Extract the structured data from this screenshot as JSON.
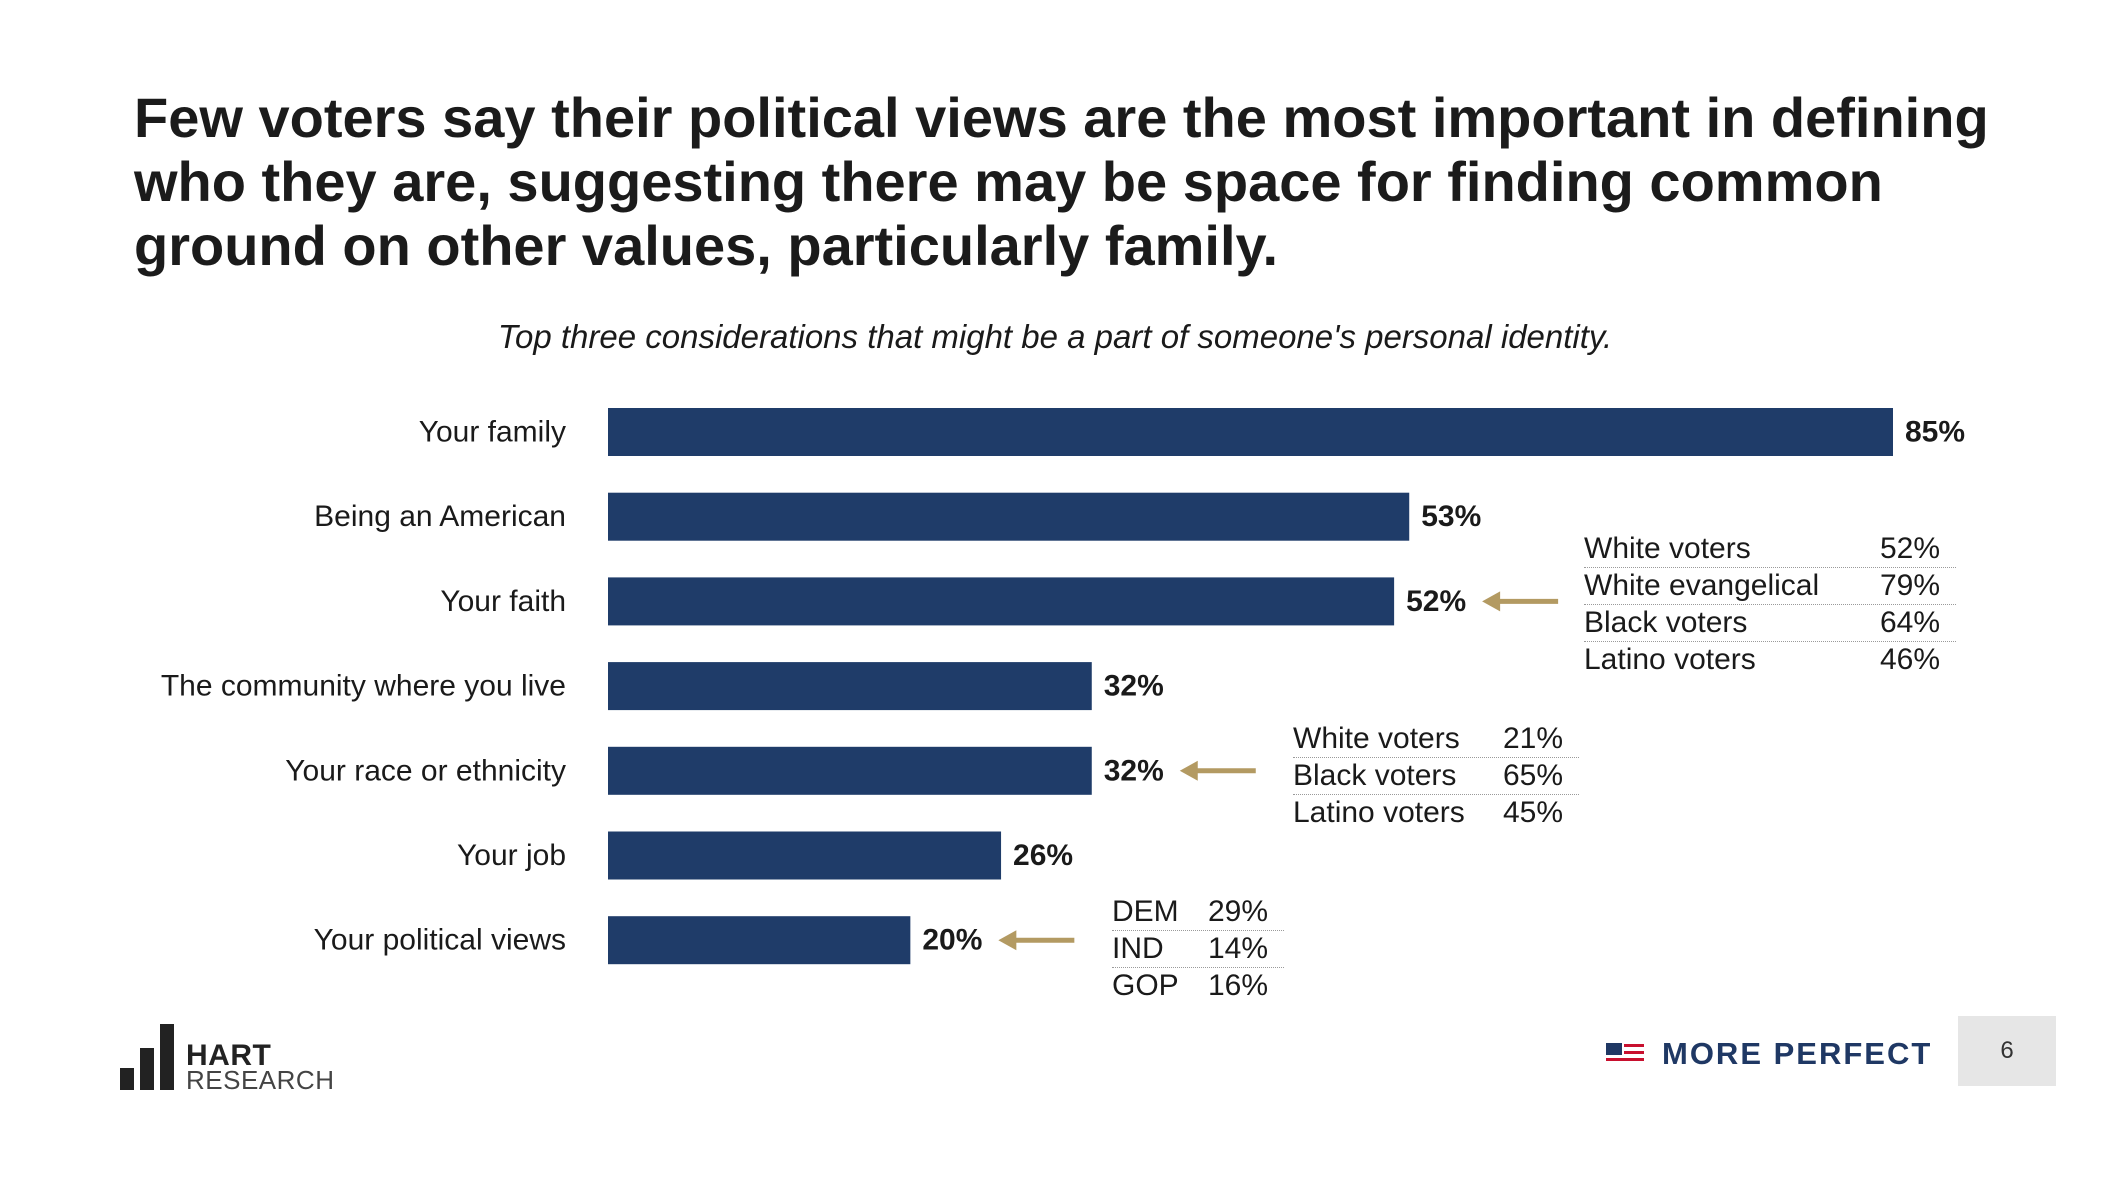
{
  "title": "Few voters say their political views are the most important in defining who they are, suggesting there may be space for finding common ground on other values, particularly family.",
  "subtitle": "Top three considerations that might be a part of someone's personal identity.",
  "colors": {
    "bar": "#1f3c69",
    "arrow": "#b39a62",
    "brand": "#1f3864",
    "flag_red": "#c8102e"
  },
  "chart_data": {
    "type": "bar",
    "orientation": "horizontal",
    "title": "Top three considerations that might be a part of someone's personal identity.",
    "categories": [
      "Your family",
      "Being an American",
      "Your faith",
      "The community where you live",
      "Your race or ethnicity",
      "Your job",
      "Your political views"
    ],
    "values": [
      85,
      53,
      52,
      32,
      32,
      26,
      20
    ],
    "value_labels": [
      "85%",
      "53%",
      "52%",
      "32%",
      "32%",
      "26%",
      "20%"
    ],
    "xlim": [
      0,
      85
    ],
    "grid": false,
    "legend": "none"
  },
  "callouts": [
    {
      "category": "Your faith",
      "rows": [
        {
          "label": "White voters",
          "value": "52%"
        },
        {
          "label": "White evangelical",
          "value": "79%"
        },
        {
          "label": "Black voters",
          "value": "64%"
        },
        {
          "label": "Latino voters",
          "value": "46%"
        }
      ]
    },
    {
      "category": "Your race or ethnicity",
      "rows": [
        {
          "label": "White voters",
          "value": "21%"
        },
        {
          "label": "Black voters",
          "value": "65%"
        },
        {
          "label": "Latino voters",
          "value": "45%"
        }
      ]
    },
    {
      "category": "Your political views",
      "rows": [
        {
          "label": "DEM",
          "value": "29%"
        },
        {
          "label": "IND",
          "value": "14%"
        },
        {
          "label": "GOP",
          "value": "16%"
        }
      ]
    }
  ],
  "footer": {
    "logo_line1": "HART",
    "logo_line2": "RESEARCH",
    "brand": "MORE PERFECT",
    "page_number": "6"
  }
}
